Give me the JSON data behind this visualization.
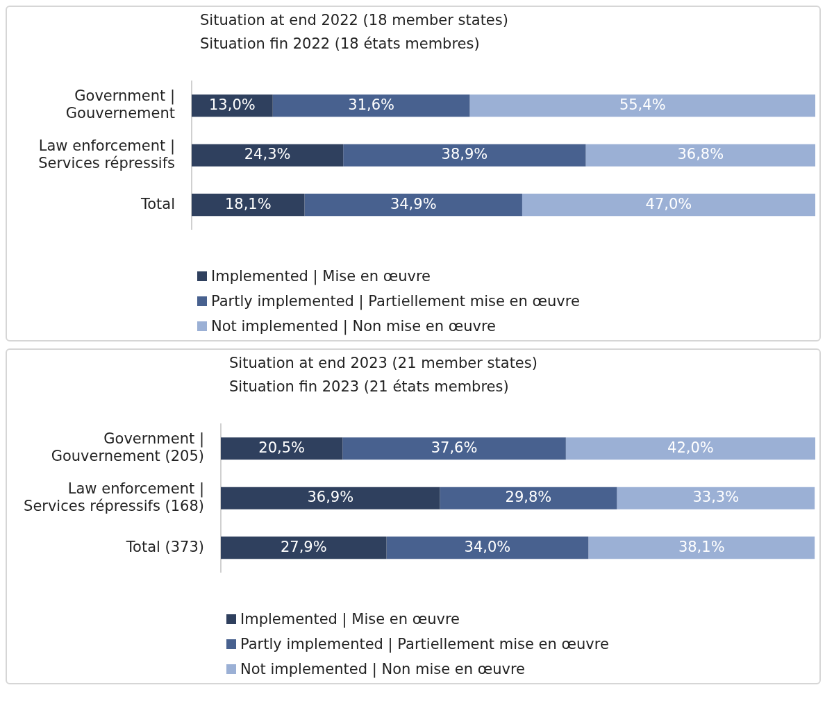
{
  "chart_data": [
    {
      "type": "bar",
      "orientation": "horizontal",
      "stacked": true,
      "title": "Situation at end 2022 (18 member states)",
      "subtitle": "Situation fin 2022 (18 états membres)",
      "categories": [
        "Government | Gouvernement",
        "Law enforcement | Services répressifs",
        "Total"
      ],
      "series": [
        {
          "name": "Implemented | Mise en œuvre",
          "color": "#2f405e",
          "values": [
            13.0,
            24.3,
            18.1
          ],
          "value_labels": [
            "13,0%",
            "24,3%",
            "18,1%"
          ]
        },
        {
          "name": "Partly implemented | Partiellement mise en œuvre",
          "color": "#48618f",
          "values": [
            31.6,
            38.9,
            34.9
          ],
          "value_labels": [
            "31,6%",
            "38,9%",
            "34,9%"
          ]
        },
        {
          "name": "Not implemented | Non mise en œuvre",
          "color": "#9bb0d5",
          "values": [
            55.4,
            36.8,
            47.0
          ],
          "value_labels": [
            "55,4%",
            "36,8%",
            "47,0%"
          ]
        }
      ],
      "legend": "bottom",
      "grid": false,
      "tick_labels": "y"
    },
    {
      "type": "bar",
      "orientation": "horizontal",
      "stacked": true,
      "title": "Situation at end 2023 (21 member states)",
      "subtitle": "Situation fin 2023 (21 états membres)",
      "categories": [
        "Government | Gouvernement (205)",
        "Law enforcement | Services répressifs (168)",
        "Total (373)"
      ],
      "series": [
        {
          "name": "Implemented | Mise en œuvre",
          "color": "#2f405e",
          "values": [
            20.5,
            36.9,
            27.9
          ],
          "value_labels": [
            "20,5%",
            "36,9%",
            "27,9%"
          ]
        },
        {
          "name": "Partly implemented | Partiellement mise en œuvre",
          "color": "#48618f",
          "values": [
            37.6,
            29.8,
            34.0
          ],
          "value_labels": [
            "37,6%",
            "29,8%",
            "34,0%"
          ]
        },
        {
          "name": "Not implemented | Non mise en œuvre",
          "color": "#9bb0d5",
          "values": [
            42.0,
            33.3,
            38.1
          ],
          "value_labels": [
            "42,0%",
            "33,3%",
            "38,1%"
          ]
        }
      ],
      "legend": "bottom",
      "grid": false,
      "tick_labels": "y"
    }
  ]
}
